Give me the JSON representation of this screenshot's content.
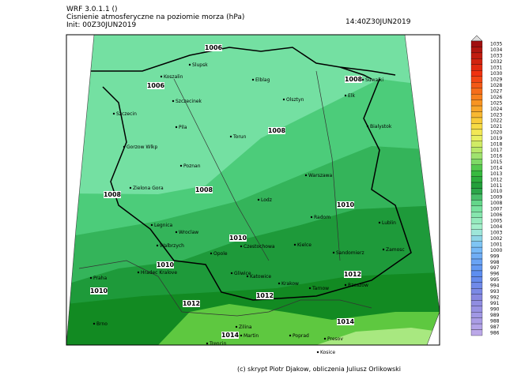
{
  "header": {
    "model": "WRF 3.0.1.1 ()",
    "title": "Cisnienie atmosferyczne na poziomie morza (hPa)",
    "init": "Init: 00Z30JUN2019",
    "valid_time": "14:40Z30JUN2019"
  },
  "colorbar": {
    "labels": [
      1035,
      1034,
      1033,
      1032,
      1031,
      1030,
      1029,
      1028,
      1027,
      1026,
      1025,
      1024,
      1023,
      1022,
      1021,
      1020,
      1019,
      1018,
      1017,
      1016,
      1015,
      1014,
      1013,
      1012,
      1011,
      1010,
      1009,
      1008,
      1007,
      1006,
      1005,
      1004,
      1003,
      1002,
      1001,
      1000,
      999,
      998,
      997,
      996,
      995,
      994,
      993,
      992,
      991,
      990,
      989,
      988,
      987,
      986
    ]
  },
  "cities": [
    "Slupsk",
    "Koszalin",
    "Elblag",
    "Suwalki",
    "Olsztyn",
    "Elk",
    "Szczecinek",
    "Szczecin",
    "Pila",
    "Torun",
    "Bialystok",
    "Gorzow Wlkp",
    "Poznan",
    "Warszawa",
    "Zielona Gora",
    "Lodz",
    "Radom",
    "Lublin",
    "Legnica",
    "Wroclaw",
    "Kielce",
    "Walbrzych",
    "Opole",
    "Czestochowa",
    "Sandomierz",
    "Zamosc",
    "Gliwice",
    "Katowice",
    "Krakow",
    "Tarnow",
    "Rzeszow",
    "Praha",
    "Hradec Kralove",
    "Brno",
    "Zilina",
    "Martin",
    "Poprad",
    "Presov",
    "Kosice",
    "Trencin"
  ],
  "isobar_labels": [
    "1006",
    "1006",
    "1008",
    "1008",
    "1008",
    "1008",
    "1010",
    "1010",
    "1010",
    "1010",
    "1012",
    "1012",
    "1012",
    "1014",
    "1014"
  ],
  "footer": "(c) skrypt Piotr Djakow, obliczenia Juliusz Orlikowski"
}
